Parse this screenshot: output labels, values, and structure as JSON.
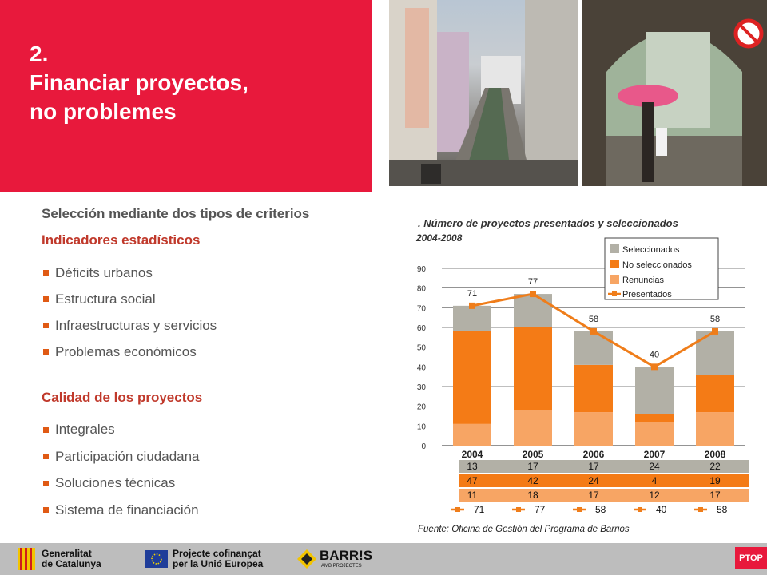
{
  "slide": {
    "title_lines": [
      "2.",
      "Financiar proyectos,",
      "no problemes"
    ]
  },
  "criteria": {
    "heading": "Selección mediante dos tipos de criterios",
    "group1": {
      "title": "Indicadores estadísticos",
      "items": [
        "Déficits urbanos",
        "Estructura social",
        "Infraestructuras y servicios",
        "Problemas económicos"
      ]
    },
    "group2": {
      "title": "Calidad de los proyectos",
      "items": [
        "Integrales",
        "Participación ciudadana",
        "Soluciones técnicas",
        "Sistema de financiación"
      ]
    }
  },
  "chart_data": {
    "type": "bar",
    "title": ". Número de proyectos presentados y seleccionados",
    "subtitle": "2004-2008",
    "categories": [
      "2004",
      "2005",
      "2006",
      "2007",
      "2008"
    ],
    "stacked": true,
    "ylim": [
      0,
      90
    ],
    "yticks": [
      0,
      10,
      20,
      30,
      40,
      50,
      60,
      70,
      80,
      90
    ],
    "grid": true,
    "legend_position": "top-right",
    "series": [
      {
        "name": "Renuncias",
        "values": [
          11,
          18,
          17,
          12,
          17
        ],
        "color": "#f7a564"
      },
      {
        "name": "No seleccionados",
        "values": [
          47,
          42,
          24,
          4,
          19
        ],
        "color": "#f47b16"
      },
      {
        "name": "Seleccionados",
        "values": [
          13,
          17,
          17,
          24,
          22
        ],
        "color": "#b2b0a6"
      }
    ],
    "line_series": {
      "name": "Presentados",
      "values": [
        71,
        77,
        58,
        40,
        58
      ],
      "color": "#ef7d1a"
    },
    "table_rows": [
      {
        "color": "#b2b0a6",
        "values": [
          "13",
          "17",
          "17",
          "24",
          "22"
        ]
      },
      {
        "color": "#f47b16",
        "values": [
          "47",
          "42",
          "24",
          "4",
          "19"
        ]
      },
      {
        "color": "#f7a564",
        "values": [
          "11",
          "18",
          "17",
          "12",
          "17"
        ]
      }
    ],
    "line_row": [
      "71",
      "77",
      "58",
      "40",
      "58"
    ],
    "source": "Fuente: Oficina de Gestión del Programa de Barrios"
  },
  "footer": {
    "logo1": [
      "Generalitat",
      "de Catalunya"
    ],
    "logo2": [
      "Projecte cofinançat",
      "per la Unió Europea"
    ],
    "logo3_main": "BARR!S",
    "logo3_sub": "AMB PROJECTES",
    "corner": "PTOP"
  },
  "colors": {
    "brand_red": "#e8193c",
    "accent_orange": "#e05a14"
  }
}
